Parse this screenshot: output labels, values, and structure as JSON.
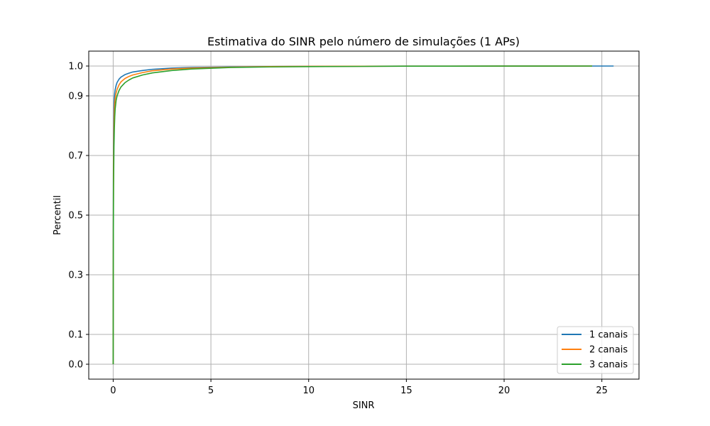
{
  "chart_data": {
    "type": "line",
    "title": "Estimativa do SINR pelo número de simulações (1 APs)",
    "xlabel": "SINR",
    "ylabel": "Percentil",
    "xlim": [
      -1.25,
      26.9
    ],
    "ylim": [
      -0.05,
      1.05
    ],
    "xticks": [
      0,
      5,
      10,
      15,
      20,
      25
    ],
    "xtick_labels": [
      "0",
      "5",
      "10",
      "15",
      "20",
      "25"
    ],
    "yticks": [
      0.0,
      0.1,
      0.3,
      0.5,
      0.7,
      0.9,
      1.0
    ],
    "ytick_labels": [
      "0.0",
      "0.1",
      "0.3",
      "0.5",
      "0.7",
      "0.9",
      "1.0"
    ],
    "grid": true,
    "legend_position": "bottom-right",
    "series": [
      {
        "name": "1 canais",
        "color": "#1f77b4",
        "x": [
          0,
          0.005,
          0.01,
          0.02,
          0.04,
          0.06,
          0.08,
          0.1,
          0.15,
          0.2,
          0.3,
          0.4,
          0.6,
          0.8,
          1.0,
          1.5,
          2.0,
          3.0,
          4.0,
          6.0,
          8.0,
          10.0,
          15.0,
          20.0,
          25.6
        ],
        "y": [
          0.0,
          0.45,
          0.62,
          0.77,
          0.86,
          0.895,
          0.91,
          0.92,
          0.935,
          0.945,
          0.956,
          0.963,
          0.971,
          0.976,
          0.98,
          0.985,
          0.989,
          0.993,
          0.995,
          0.997,
          0.998,
          0.999,
          0.9995,
          0.9998,
          1.0
        ]
      },
      {
        "name": "2 canais",
        "color": "#ff7f0e",
        "x": [
          0,
          0.005,
          0.01,
          0.02,
          0.04,
          0.06,
          0.08,
          0.1,
          0.15,
          0.2,
          0.3,
          0.4,
          0.6,
          0.8,
          1.0,
          1.5,
          2.0,
          3.0,
          4.0,
          6.0,
          8.0,
          10.0,
          15.0,
          20.0,
          24.5
        ],
        "y": [
          0.0,
          0.35,
          0.52,
          0.68,
          0.8,
          0.85,
          0.875,
          0.89,
          0.91,
          0.922,
          0.937,
          0.947,
          0.958,
          0.965,
          0.97,
          0.978,
          0.984,
          0.99,
          0.993,
          0.996,
          0.998,
          0.999,
          0.9995,
          0.9998,
          1.0
        ]
      },
      {
        "name": "3 canais",
        "color": "#2ca02c",
        "x": [
          0,
          0.005,
          0.01,
          0.02,
          0.04,
          0.06,
          0.08,
          0.1,
          0.15,
          0.2,
          0.3,
          0.4,
          0.6,
          0.8,
          1.0,
          1.5,
          2.0,
          3.0,
          4.0,
          6.0,
          8.0,
          10.0,
          15.0,
          20.0,
          24.5
        ],
        "y": [
          0.0,
          0.3,
          0.45,
          0.6,
          0.73,
          0.79,
          0.83,
          0.855,
          0.885,
          0.9,
          0.918,
          0.93,
          0.944,
          0.953,
          0.96,
          0.97,
          0.977,
          0.985,
          0.99,
          0.995,
          0.997,
          0.998,
          0.9995,
          0.9998,
          1.0
        ]
      }
    ]
  }
}
